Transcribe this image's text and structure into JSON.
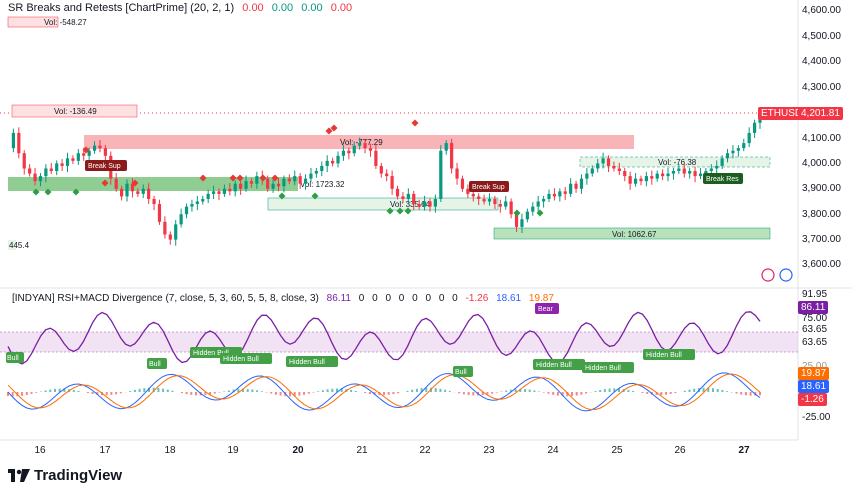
{
  "indicator1": {
    "name": "SR Breaks and Retests [ChartPrime] (20, 2, 1)",
    "values": [
      "0.00",
      "0.00",
      "0.00",
      "0.00"
    ]
  },
  "indicator2": {
    "name": "[INDYAN] RSI+MACD Divergence (7, close, 5, 3, 60, 5, 5, 8, close, 3)",
    "rsi_value": "86.11",
    "zeros": [
      "0",
      "0",
      "0",
      "0",
      "0",
      "0",
      "0",
      "0"
    ],
    "macd_hist": "-1.26",
    "macd_line": "18.61",
    "signal_line": "19.87"
  },
  "symbol": {
    "ticker": "ETHUSD",
    "price": "4,201.81"
  },
  "price_axis": [
    "4,600.00",
    "4,500.00",
    "4,400.00",
    "4,300.00",
    "4,100.00",
    "4,000.00",
    "3,900.00",
    "3,800.00",
    "3,700.00",
    "3,600.00"
  ],
  "indicator_axis": {
    "top": "91.95",
    "rsi": "86.11",
    "l75": "75.00",
    "l63a": "63.65",
    "l63b": "63.65",
    "signal": "19.87",
    "macd": "18.61",
    "hist": "-1.26",
    "bottom": "-25.00",
    "partial": "25.00"
  },
  "time_axis": [
    "16",
    "17",
    "18",
    "19",
    "20",
    "21",
    "22",
    "23",
    "24",
    "25",
    "26",
    "27"
  ],
  "zones": {
    "vol_548": "Vol: -548.27",
    "vol_136": "Vol: -136.49",
    "vol_777": "Vol: -777.29",
    "vol_1723": "Vol: 1723.32",
    "vol_335": "Vol: 335.64",
    "vol_1062": "Vol: 1062.67",
    "vol_76": "Vol: -76.38",
    "left_445": "445.4"
  },
  "break_labels": {
    "break_sup_1": "Break Sup",
    "break_sup_2": "Break Sup",
    "break_res": "Break Res"
  },
  "divergence_labels": {
    "bull_1": "Bull",
    "bull_2": "Bull",
    "hidden_bull_1": "Hidden Bull",
    "hidden_bull_2": "Hidden Bull",
    "hidden_bull_3": "Hidden Bull",
    "bull_3": "Bull",
    "hidden_bull_4": "Hidden Bull",
    "hidden_bull_5": "Hidden Bull",
    "hidden_bull_6": "Hidden Bull",
    "bear_1": "Bear"
  },
  "branding": {
    "logo_text": "TradingView"
  },
  "colors": {
    "bull": "#089981",
    "bear": "#f23645",
    "zone_red": "#f7a1a6",
    "zone_green": "#7cc47f",
    "rsi": "#7b1fa2",
    "macd": "#2962ff",
    "signal": "#ff6d00",
    "accent": "#ff5252"
  },
  "price_series": [
    4060,
    4120,
    4040,
    3980,
    3960,
    3930,
    3950,
    3980,
    3970,
    4000,
    3990,
    4020,
    4010,
    4040,
    4030,
    4050,
    4070,
    4060,
    4030,
    3940,
    3900,
    3870,
    3920,
    3890,
    3880,
    3900,
    3860,
    3840,
    3770,
    3720,
    3700,
    3760,
    3800,
    3830,
    3840,
    3850,
    3860,
    3880,
    3890,
    3880,
    3900,
    3890,
    3920,
    3900,
    3930,
    3920,
    3950,
    3940,
    3900,
    3920,
    3910,
    3940,
    3930,
    3950,
    3920,
    3940,
    3960,
    3970,
    3990,
    4010,
    4000,
    4030,
    4050,
    4040,
    4070,
    4080,
    4060,
    4050,
    3990,
    3960,
    3950,
    3900,
    3870,
    3860,
    3880,
    3840,
    3830,
    3850,
    3830,
    3860,
    4050,
    4080,
    3980,
    3940,
    3900,
    3880,
    3870,
    3860,
    3850,
    3860,
    3840,
    3830,
    3850,
    3800,
    3750,
    3780,
    3810,
    3830,
    3850,
    3860,
    3880,
    3870,
    3890,
    3880,
    3920,
    3900,
    3940,
    3960,
    3980,
    4000,
    4020,
    3990,
    3980,
    3970,
    3950,
    3920,
    3940,
    3930,
    3950,
    3940,
    3960,
    3950,
    3960,
    3970,
    3980,
    3960,
    3970,
    3950,
    3960,
    3970,
    3980,
    3990,
    4020,
    4040,
    4050,
    4060,
    4080,
    4120,
    4160,
    4200
  ]
}
